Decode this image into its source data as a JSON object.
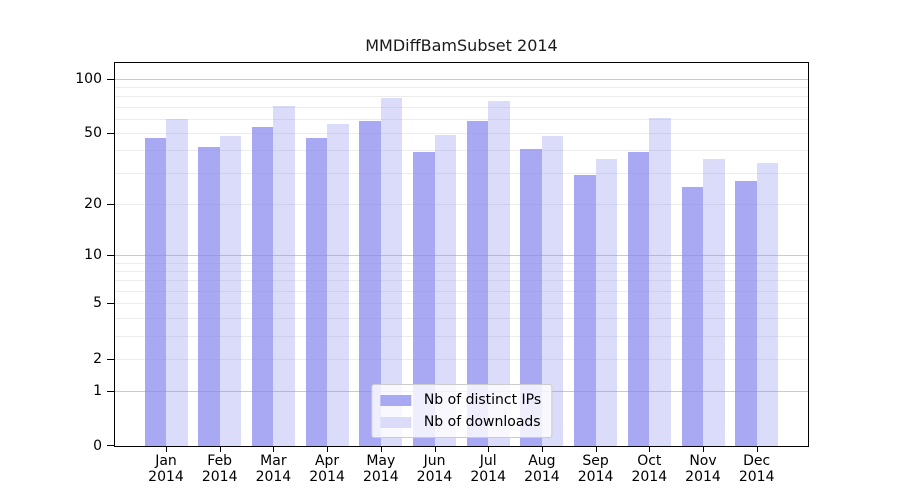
{
  "title": "MMDiffBamSubset 2014",
  "colors": {
    "ips_bar": "rgba(136,136,238,0.72)",
    "downloads_bar": "rgba(136,136,238,0.30)",
    "ips_swatch": "#a9a9f3",
    "downloads_swatch": "#dbdbfa",
    "grid_minor": "#ececec",
    "grid_major": "#c9c9c9",
    "axis": "#000000"
  },
  "legend": {
    "items": [
      {
        "label": "Nb of distinct IPs",
        "series": "ips"
      },
      {
        "label": "Nb of downloads",
        "series": "downloads"
      }
    ]
  },
  "chart_data": {
    "type": "bar",
    "title": "MMDiffBamSubset 2014",
    "year": "2014",
    "categories": [
      "Jan",
      "Feb",
      "Mar",
      "Apr",
      "May",
      "Jun",
      "Jul",
      "Aug",
      "Sep",
      "Oct",
      "Nov",
      "Dec"
    ],
    "series": [
      {
        "name": "Nb of distinct IPs",
        "values": [
          47,
          42,
          54,
          47,
          58,
          39,
          58,
          41,
          29,
          39,
          25,
          27
        ]
      },
      {
        "name": "Nb of downloads",
        "values": [
          60,
          48,
          71,
          56,
          78,
          49,
          75,
          48,
          36,
          61,
          36,
          34
        ]
      }
    ],
    "y_scale": "log1p",
    "ylim": [
      0,
      122
    ],
    "y_ticks": [
      0,
      1,
      2,
      5,
      10,
      20,
      50,
      100
    ],
    "grid_minor_values": [
      2,
      3,
      4,
      5,
      6,
      7,
      8,
      9,
      20,
      30,
      40,
      50,
      60,
      70,
      80,
      90
    ],
    "grid_major_values": [
      1,
      10,
      100
    ],
    "grid": "horizontal",
    "legend_position": "lower center",
    "xlabel": "",
    "ylabel": ""
  }
}
